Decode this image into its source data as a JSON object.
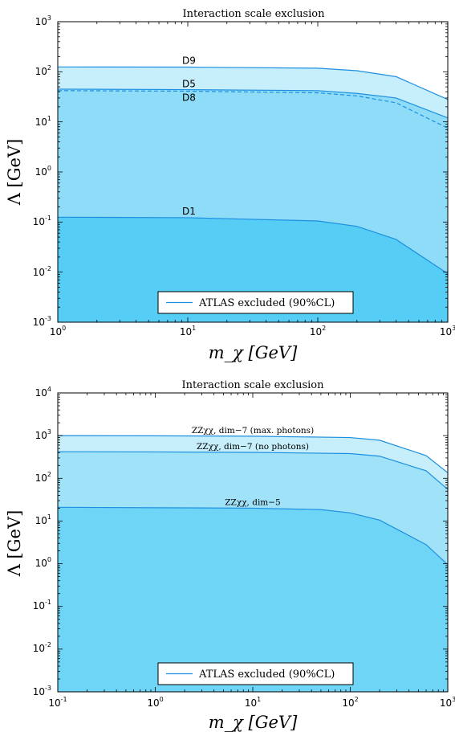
{
  "chart_data": [
    {
      "type": "area",
      "title": "Interaction scale exclusion",
      "xlabel": "m_χ [GeV]",
      "ylabel": "Λ [GeV]",
      "xscale": "log",
      "yscale": "log",
      "xlim": [
        1,
        1000
      ],
      "ylim": [
        0.001,
        1000
      ],
      "xticks": [
        {
          "base": "10",
          "exp": "0"
        },
        {
          "base": "10",
          "exp": "1"
        },
        {
          "base": "10",
          "exp": "2"
        },
        {
          "base": "10",
          "exp": "3"
        }
      ],
      "yticks": [
        {
          "base": "10",
          "exp": "-3"
        },
        {
          "base": "10",
          "exp": "-2"
        },
        {
          "base": "10",
          "exp": "-1"
        },
        {
          "base": "10",
          "exp": "0"
        },
        {
          "base": "10",
          "exp": "1"
        },
        {
          "base": "10",
          "exp": "2"
        },
        {
          "base": "10",
          "exp": "3"
        }
      ],
      "grid": false,
      "legend": {
        "position": "bottom-center",
        "entries": [
          "ATLAS excluded (90%CL)"
        ]
      },
      "series": [
        {
          "name": "D9",
          "style": "solid",
          "fill": "#c6eefb",
          "x": [
            1,
            10,
            100,
            200,
            400,
            1000
          ],
          "y": [
            125,
            124,
            118,
            105,
            80,
            28
          ]
        },
        {
          "name": "D5",
          "style": "solid",
          "fill": "#8edcf8",
          "x": [
            1,
            10,
            100,
            200,
            400,
            1000
          ],
          "y": [
            45,
            44,
            42,
            37,
            30,
            12
          ]
        },
        {
          "name": "D8",
          "style": "dashed",
          "fill": null,
          "x": [
            1,
            10,
            100,
            200,
            400,
            1000
          ],
          "y": [
            42,
            41,
            38,
            33,
            24,
            7.5
          ]
        },
        {
          "name": "D1",
          "style": "solid",
          "fill": "#55cdf5",
          "x": [
            1,
            10,
            100,
            200,
            400,
            1000
          ],
          "y": [
            0.125,
            0.122,
            0.105,
            0.082,
            0.045,
            0.0093
          ]
        }
      ],
      "colors": {
        "line": "#1e8fe0",
        "axis": "#000000"
      }
    },
    {
      "type": "area",
      "title": "Interaction scale exclusion",
      "xlabel": "m_χ [GeV]",
      "ylabel": "Λ [GeV]",
      "xscale": "log",
      "yscale": "log",
      "xlim": [
        0.1,
        1000
      ],
      "ylim": [
        0.001,
        10000
      ],
      "xticks": [
        {
          "base": "10",
          "exp": "-1"
        },
        {
          "base": "10",
          "exp": "0"
        },
        {
          "base": "10",
          "exp": "1"
        },
        {
          "base": "10",
          "exp": "2"
        },
        {
          "base": "10",
          "exp": "3"
        }
      ],
      "yticks": [
        {
          "base": "10",
          "exp": "-3"
        },
        {
          "base": "10",
          "exp": "-2"
        },
        {
          "base": "10",
          "exp": "-1"
        },
        {
          "base": "10",
          "exp": "0"
        },
        {
          "base": "10",
          "exp": "1"
        },
        {
          "base": "10",
          "exp": "2"
        },
        {
          "base": "10",
          "exp": "3"
        },
        {
          "base": "10",
          "exp": "4"
        }
      ],
      "grid": false,
      "legend": {
        "position": "bottom-center",
        "entries": [
          "ATLAS excluded (90%CL)"
        ]
      },
      "series": [
        {
          "name": "ZZχχ, dim−7 (max. photons)",
          "style": "solid",
          "fill": "#c6eefb",
          "x": [
            0.1,
            1,
            10,
            100,
            200,
            600,
            1000
          ],
          "y": [
            1000,
            990,
            970,
            900,
            780,
            340,
            135
          ]
        },
        {
          "name": "ZZχχ, dim−7 (no photons)",
          "style": "solid",
          "fill": "#a0e3f9",
          "x": [
            0.1,
            1,
            10,
            100,
            200,
            600,
            1000
          ],
          "y": [
            420,
            415,
            405,
            380,
            330,
            150,
            55
          ]
        },
        {
          "name": "ZZχχ, dim−5",
          "style": "solid",
          "fill": "#6fd5f6",
          "x": [
            0.1,
            1,
            10,
            50,
            100,
            200,
            600,
            1000
          ],
          "y": [
            21,
            20.5,
            20,
            18.5,
            15.5,
            10.5,
            2.8,
            0.95
          ]
        }
      ],
      "colors": {
        "line": "#1e8fe0",
        "axis": "#000000"
      }
    }
  ]
}
